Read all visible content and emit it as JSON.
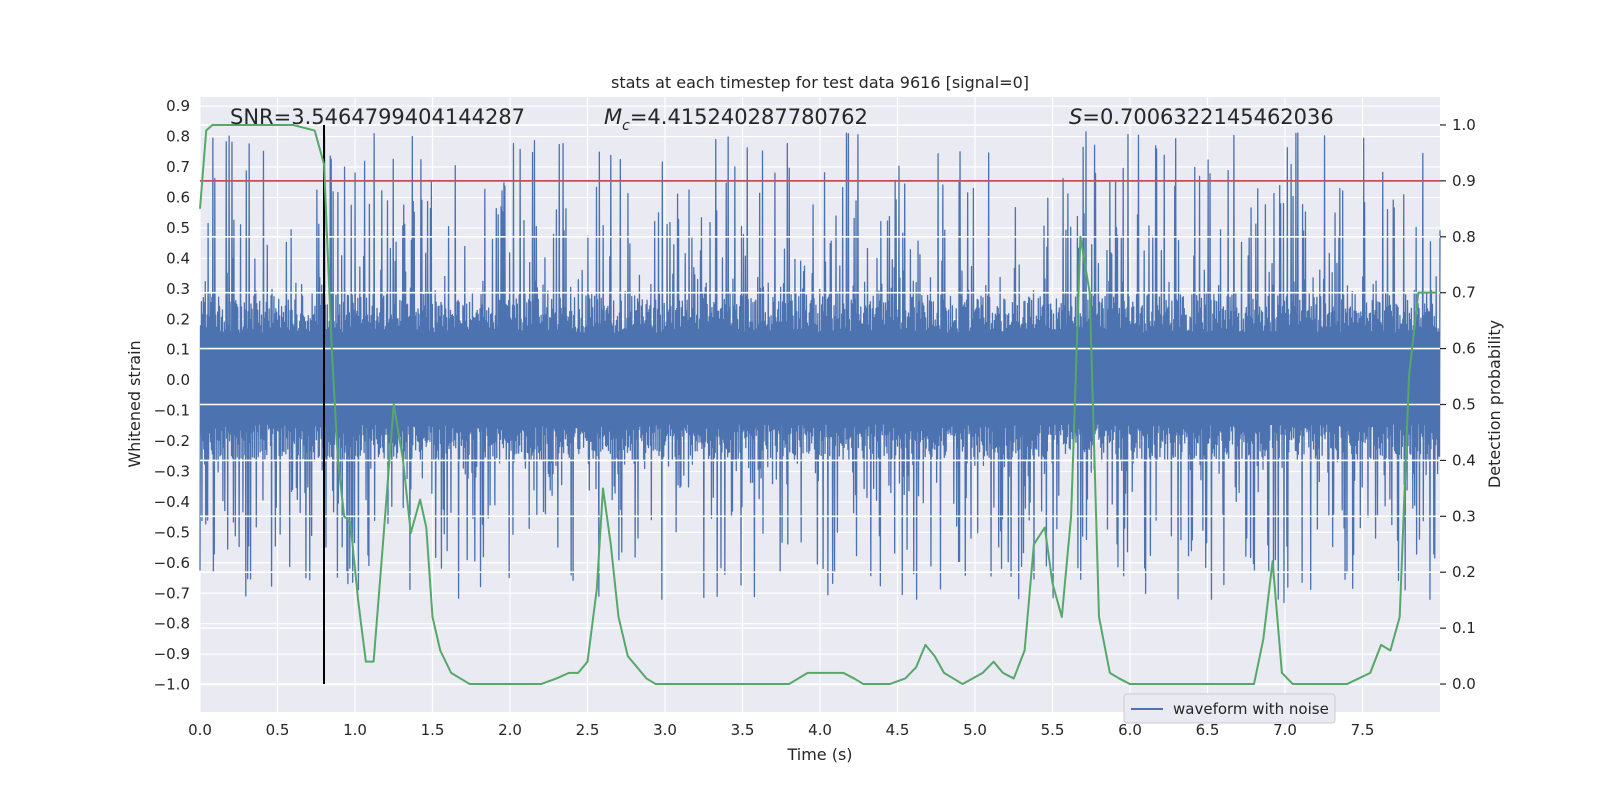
{
  "chart_data": {
    "type": "line",
    "title": "stats at each timestep for test data 9616 [signal=0]",
    "xlabel": "Time (s)",
    "ylabel": "Whitened strain",
    "y2label": "Detection probability",
    "xlim": [
      0.0,
      8.0
    ],
    "ylim": [
      -1.09,
      0.93
    ],
    "y2lim": [
      -0.05,
      1.05
    ],
    "xticks": [
      "0.0",
      "0.5",
      "1.0",
      "1.5",
      "2.0",
      "2.5",
      "3.0",
      "3.5",
      "4.0",
      "4.5",
      "5.0",
      "5.5",
      "6.0",
      "6.5",
      "7.0",
      "7.5"
    ],
    "xtick_values": [
      0.0,
      0.5,
      1.0,
      1.5,
      2.0,
      2.5,
      3.0,
      3.5,
      4.0,
      4.5,
      5.0,
      5.5,
      6.0,
      6.5,
      7.0,
      7.5
    ],
    "yticks": [
      "0.9",
      "0.8",
      "0.7",
      "0.6",
      "0.5",
      "0.4",
      "0.3",
      "0.2",
      "0.1",
      "0.0",
      "−0.1",
      "−0.2",
      "−0.3",
      "−0.4",
      "−0.5",
      "−0.6",
      "−0.7",
      "−0.8",
      "−0.9",
      "−1.0"
    ],
    "ytick_values": [
      0.9,
      0.8,
      0.7,
      0.6,
      0.5,
      0.4,
      0.3,
      0.2,
      0.1,
      0.0,
      -0.1,
      -0.2,
      -0.3,
      -0.4,
      -0.5,
      -0.6,
      -0.7,
      -0.8,
      -0.9,
      -1.0
    ],
    "y2ticks": [
      "1.0",
      "0.9",
      "0.8",
      "0.7",
      "0.6",
      "0.5",
      "0.4",
      "0.3",
      "0.2",
      "0.1",
      "0.0"
    ],
    "y2tick_values": [
      1.0,
      0.9,
      0.8,
      0.7,
      0.6,
      0.5,
      0.4,
      0.3,
      0.2,
      0.1,
      0.0
    ],
    "annotations": {
      "snr": "SNR=3.5464799404144287",
      "mc_symbol": "M",
      "mc_sub": "c",
      "mc_value": "=4.415240287780762",
      "s_symbol": "S",
      "s_value": "=0.7006322145462036"
    },
    "threshold_probability": 0.9,
    "marker_time": 0.8,
    "grid": true,
    "legend_position": "lower right",
    "series": [
      {
        "name": "waveform with noise",
        "axis": "left",
        "style": "dense noise trace",
        "color": "#4c72b0",
        "envelope": {
          "core_amplitude": 0.28,
          "typical_peak_max": 0.82,
          "typical_peak_min": -0.72,
          "duration": 8.0
        }
      },
      {
        "axis": "right",
        "color": "#55a868",
        "x": [
          0.0,
          0.04,
          0.08,
          0.2,
          0.4,
          0.6,
          0.74,
          0.8,
          0.85,
          0.89,
          0.93,
          0.97,
          1.02,
          1.07,
          1.12,
          1.18,
          1.25,
          1.31,
          1.36,
          1.42,
          1.46,
          1.5,
          1.55,
          1.62,
          1.68,
          1.74,
          1.8,
          1.9,
          2.05,
          2.2,
          2.3,
          2.38,
          2.44,
          2.5,
          2.56,
          2.6,
          2.65,
          2.7,
          2.76,
          2.82,
          2.88,
          2.94,
          3.0,
          3.1,
          3.3,
          3.5,
          3.8,
          3.92,
          3.98,
          4.03,
          4.08,
          4.15,
          4.22,
          4.28,
          4.35,
          4.45,
          4.55,
          4.62,
          4.68,
          4.74,
          4.8,
          4.86,
          4.92,
          5.05,
          5.12,
          5.18,
          5.25,
          5.32,
          5.38,
          5.45,
          5.5,
          5.56,
          5.62,
          5.68,
          5.74,
          5.8,
          5.87,
          5.93,
          6.0,
          6.2,
          6.4,
          6.6,
          6.8,
          6.86,
          6.92,
          6.98,
          7.05,
          7.2,
          7.4,
          7.55,
          7.62,
          7.68,
          7.74,
          7.8,
          7.86,
          7.92,
          7.98
        ],
        "values": [
          0.85,
          0.99,
          1.0,
          1.0,
          1.0,
          1.0,
          0.99,
          0.93,
          0.6,
          0.4,
          0.3,
          0.29,
          0.15,
          0.04,
          0.04,
          0.25,
          0.5,
          0.4,
          0.27,
          0.33,
          0.28,
          0.12,
          0.06,
          0.02,
          0.01,
          0.0,
          0.0,
          0.0,
          0.0,
          0.0,
          0.01,
          0.02,
          0.02,
          0.04,
          0.17,
          0.35,
          0.25,
          0.12,
          0.05,
          0.03,
          0.01,
          0.0,
          0.0,
          0.0,
          0.0,
          0.0,
          0.0,
          0.02,
          0.02,
          0.02,
          0.02,
          0.02,
          0.01,
          0.0,
          0.0,
          0.0,
          0.01,
          0.03,
          0.07,
          0.05,
          0.02,
          0.01,
          0.0,
          0.02,
          0.04,
          0.02,
          0.01,
          0.06,
          0.25,
          0.28,
          0.18,
          0.12,
          0.3,
          0.8,
          0.7,
          0.12,
          0.02,
          0.01,
          0.0,
          0.0,
          0.0,
          0.0,
          0.0,
          0.08,
          0.22,
          0.02,
          0.0,
          0.0,
          0.0,
          0.02,
          0.07,
          0.06,
          0.12,
          0.55,
          0.7,
          0.7,
          0.7
        ]
      }
    ]
  }
}
